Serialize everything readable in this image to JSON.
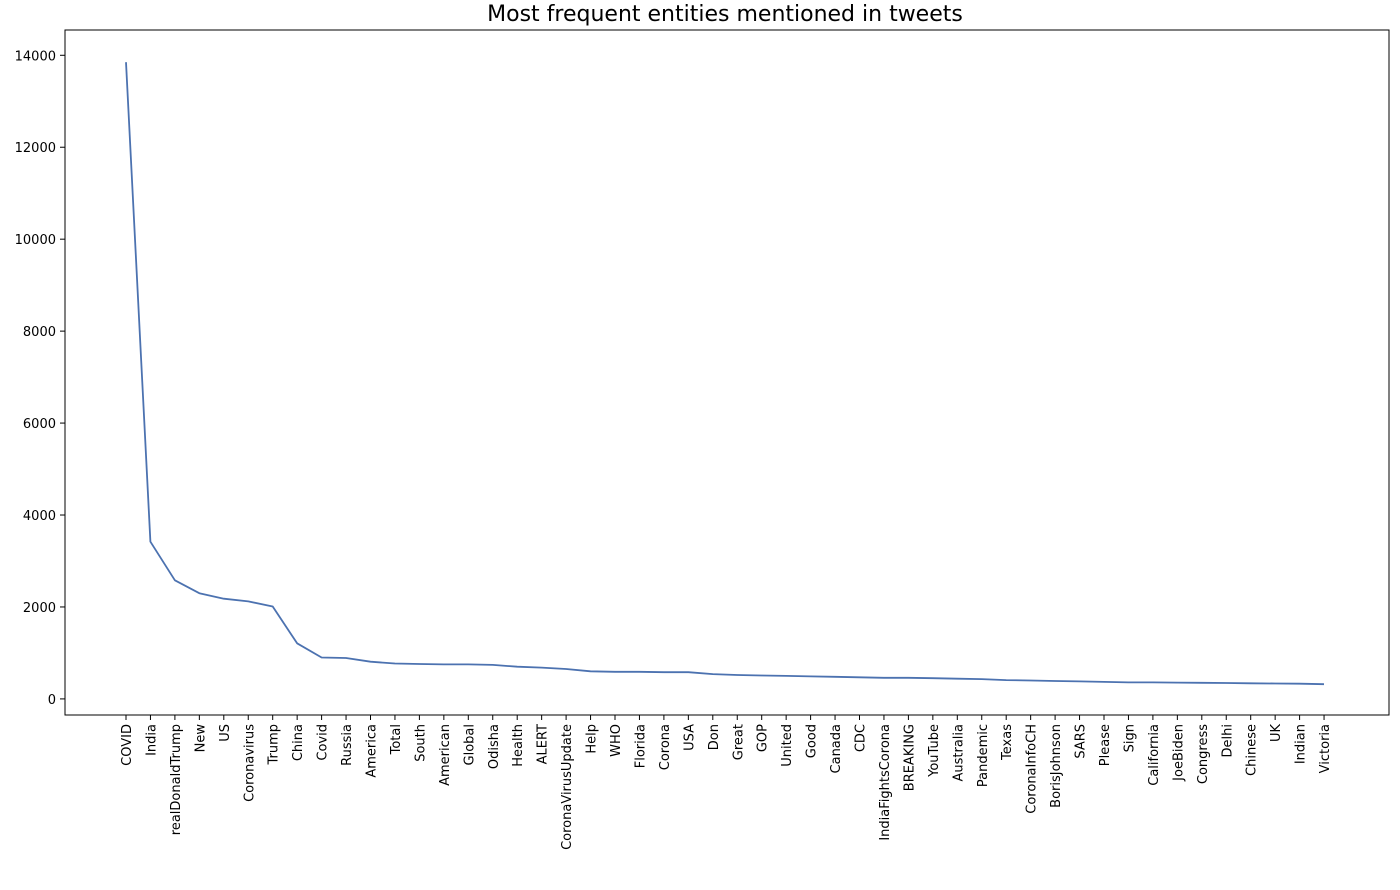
{
  "chart_data": {
    "type": "line",
    "title": "Most frequent entities mentioned in tweets",
    "xlabel": "",
    "ylabel": "",
    "ylim": [
      -350,
      14550
    ],
    "yticks": [
      0,
      2000,
      4000,
      6000,
      8000,
      10000,
      12000,
      14000
    ],
    "grid": false,
    "line_color": "#4c72b0",
    "categories": [
      "COVID",
      "India",
      "realDonaldTrump",
      "New",
      "US",
      "Coronavirus",
      "Trump",
      "China",
      "Covid",
      "Russia",
      "America",
      "Total",
      "South",
      "American",
      "Global",
      "Odisha",
      "Health",
      "ALERT",
      "CoronaVirusUpdate",
      "Help",
      "WHO",
      "Florida",
      "Corona",
      "USA",
      "Don",
      "Great",
      "GOP",
      "United",
      "Good",
      "Canada",
      "CDC",
      "IndiaFightsCorona",
      "BREAKING",
      "YouTube",
      "Australia",
      "Pandemic",
      "Texas",
      "CoronaInfoCH",
      "BorisJohnson",
      "SARS",
      "Please",
      "Sign",
      "California",
      "JoeBiden",
      "Congress",
      "Delhi",
      "Chinese",
      "UK",
      "Indian",
      "Victoria"
    ],
    "values": [
      13850,
      3420,
      2580,
      2300,
      2180,
      2120,
      2010,
      1210,
      900,
      890,
      810,
      770,
      760,
      750,
      750,
      740,
      700,
      680,
      650,
      600,
      590,
      590,
      580,
      580,
      540,
      520,
      510,
      500,
      490,
      480,
      470,
      460,
      460,
      450,
      440,
      430,
      410,
      400,
      390,
      380,
      370,
      360,
      360,
      355,
      350,
      345,
      340,
      335,
      330,
      320
    ]
  }
}
